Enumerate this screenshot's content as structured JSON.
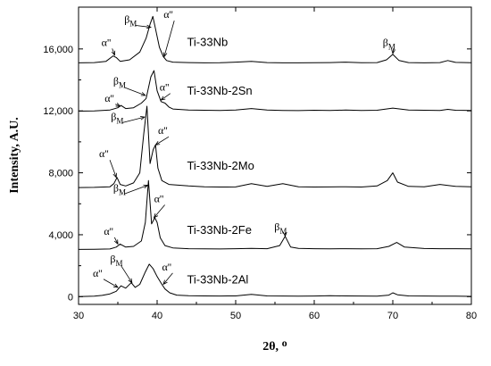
{
  "chart_data": {
    "type": "line",
    "xlabel": "2θ, ᴼ",
    "ylabel": "Intensity, A.U.",
    "xlim": [
      30,
      80
    ],
    "ylim": [
      -500,
      18700
    ],
    "x_ticks": [
      30,
      40,
      50,
      60,
      70,
      80
    ],
    "y_ticks": [
      0,
      4000,
      8000,
      12000,
      16000
    ],
    "y_tick_labels": [
      "0",
      "4,000",
      "8,000",
      "12,000",
      "16,000"
    ],
    "grid": false,
    "series": [
      {
        "name": "Ti-33Nb",
        "x": [
          30,
          32,
          33.5,
          34.4,
          34.8,
          35.3,
          36.5,
          37.8,
          38.6,
          39.1,
          39.45,
          39.8,
          40.3,
          40.8,
          41.2,
          42,
          44,
          46,
          48,
          50,
          52,
          54,
          56,
          58,
          60,
          62,
          64,
          66,
          68,
          69.2,
          70,
          70.8,
          72,
          74,
          76,
          77,
          78,
          80
        ],
        "y": [
          15100,
          15120,
          15200,
          15550,
          15450,
          15200,
          15300,
          15800,
          16700,
          17600,
          18100,
          17300,
          16100,
          15500,
          15250,
          15150,
          15120,
          15100,
          15110,
          15150,
          15200,
          15120,
          15100,
          15100,
          15110,
          15120,
          15150,
          15110,
          15120,
          15300,
          15650,
          15250,
          15120,
          15100,
          15120,
          15250,
          15130,
          15110
        ]
      },
      {
        "name": "Ti-33Nb-2Sn",
        "x": [
          30,
          32,
          34,
          35,
          35.4,
          36,
          37,
          38,
          38.6,
          39.2,
          39.6,
          40,
          40.5,
          41,
          41.5,
          42,
          44,
          46,
          48,
          50,
          52,
          54,
          56,
          58,
          60,
          62,
          64,
          66,
          68,
          70,
          72,
          74,
          76,
          77,
          78,
          80
        ],
        "y": [
          11980,
          12000,
          12060,
          12200,
          12350,
          12150,
          12200,
          12500,
          12800,
          14200,
          14600,
          13300,
          12600,
          12500,
          12250,
          12120,
          12060,
          12040,
          12030,
          12060,
          12150,
          12050,
          12030,
          12020,
          12040,
          12030,
          12050,
          12030,
          12040,
          12180,
          12050,
          12040,
          12030,
          12100,
          12040,
          12030
        ]
      },
      {
        "name": "Ti-33Nb-2Mo",
        "x": [
          30,
          32,
          34,
          34.5,
          34.9,
          35.3,
          36,
          37,
          37.8,
          38.3,
          38.7,
          39.1,
          39.5,
          39.8,
          40.1,
          40.6,
          41.5,
          44,
          46,
          48,
          50,
          52,
          54,
          56,
          58,
          60,
          62,
          64,
          66,
          68,
          69.3,
          70,
          70.6,
          72,
          74,
          76,
          78,
          80
        ],
        "y": [
          7050,
          7060,
          7100,
          7300,
          7700,
          7250,
          7150,
          7350,
          8000,
          10500,
          12300,
          8600,
          9500,
          9800,
          8300,
          7500,
          7250,
          7150,
          7100,
          7080,
          7090,
          7300,
          7120,
          7300,
          7100,
          7080,
          7090,
          7100,
          7080,
          7150,
          7500,
          8000,
          7400,
          7120,
          7100,
          7250,
          7120,
          7100
        ]
      },
      {
        "name": "Ti-33Nb-2Fe",
        "x": [
          30,
          32,
          34,
          34.8,
          35.3,
          36,
          37,
          38,
          38.5,
          38.9,
          39.3,
          39.7,
          40,
          40.4,
          41,
          42,
          44,
          46,
          48,
          50,
          52,
          54,
          55.6,
          56.3,
          57,
          58,
          60,
          62,
          64,
          66,
          68,
          69.5,
          70.5,
          71.5,
          74,
          76,
          78,
          80
        ],
        "y": [
          3050,
          3060,
          3080,
          3200,
          3400,
          3200,
          3250,
          3600,
          4800,
          7500,
          4700,
          5100,
          4800,
          3800,
          3300,
          3150,
          3100,
          3090,
          3080,
          3100,
          3120,
          3100,
          3300,
          3900,
          3200,
          3120,
          3100,
          3090,
          3100,
          3090,
          3100,
          3250,
          3500,
          3200,
          3110,
          3100,
          3100,
          3090
        ]
      },
      {
        "name": "Ti-33Nb-2Al",
        "x": [
          30,
          32,
          33,
          34,
          34.8,
          35.4,
          36,
          36.7,
          37.2,
          37.8,
          38.5,
          39,
          39.5,
          40,
          40.6,
          41,
          41.6,
          42.5,
          44,
          46,
          48,
          50,
          52,
          54,
          56,
          58,
          60,
          62,
          64,
          66,
          68,
          69.5,
          70,
          70.6,
          72,
          74,
          76,
          78,
          80
        ],
        "y": [
          0,
          30,
          80,
          180,
          350,
          700,
          550,
          900,
          600,
          800,
          1600,
          2100,
          1800,
          1300,
          800,
          500,
          250,
          100,
          60,
          50,
          40,
          50,
          150,
          50,
          40,
          30,
          40,
          60,
          50,
          40,
          30,
          100,
          250,
          120,
          50,
          40,
          30,
          30,
          20
        ]
      }
    ],
    "series_labels": [
      {
        "text": "Ti-33Nb",
        "x": 43.8,
        "y": 16200
      },
      {
        "text": "Ti-33Nb-2Sn",
        "x": 43.8,
        "y": 13050
      },
      {
        "text": "Ti-33Nb-2Mo",
        "x": 43.8,
        "y": 8200
      },
      {
        "text": "Ti-33Nb-2Fe",
        "x": 43.8,
        "y": 4050
      },
      {
        "text": "Ti-33Nb-2Al",
        "x": 43.8,
        "y": 850
      }
    ],
    "annotations": [
      {
        "symbol": "β",
        "sub": "M",
        "tx": 36.5,
        "ty": 17700,
        "ax": 39.2,
        "ay": 17400
      },
      {
        "symbol": "α''",
        "sub": "",
        "tx": 41.5,
        "ty": 18000,
        "ax": 40.9,
        "ay": 15500
      },
      {
        "symbol": "α''",
        "sub": "",
        "tx": 33.6,
        "ty": 16200,
        "ax": 34.6,
        "ay": 15600
      },
      {
        "symbol": "β",
        "sub": "M",
        "tx": 69.4,
        "ty": 16200,
        "ax": 70,
        "ay": 15700
      },
      {
        "symbol": "β",
        "sub": "M",
        "tx": 35.1,
        "ty": 13700,
        "ax": 38.5,
        "ay": 13000
      },
      {
        "symbol": "α''",
        "sub": "",
        "tx": 41,
        "ty": 13300,
        "ax": 40.5,
        "ay": 12700
      },
      {
        "symbol": "α''",
        "sub": "",
        "tx": 34,
        "ty": 12600,
        "ax": 35.3,
        "ay": 12300
      },
      {
        "symbol": "β",
        "sub": "M",
        "tx": 34.8,
        "ty": 11400,
        "ax": 38.4,
        "ay": 11600
      },
      {
        "symbol": "α''",
        "sub": "",
        "tx": 40.8,
        "ty": 10500,
        "ax": 39.8,
        "ay": 9800
      },
      {
        "symbol": "α''",
        "sub": "",
        "tx": 33.3,
        "ty": 9000,
        "ax": 34.8,
        "ay": 7700
      },
      {
        "symbol": "β",
        "sub": "M",
        "tx": 35.1,
        "ty": 6800,
        "ax": 38.8,
        "ay": 7200
      },
      {
        "symbol": "α''",
        "sub": "",
        "tx": 40.3,
        "ty": 6100,
        "ax": 39.6,
        "ay": 5100
      },
      {
        "symbol": "α''",
        "sub": "",
        "tx": 33.9,
        "ty": 4000,
        "ax": 35,
        "ay": 3400
      },
      {
        "symbol": "β",
        "sub": "M",
        "tx": 55.6,
        "ty": 4300,
        "ax": 56.3,
        "ay": 3900
      },
      {
        "symbol": "α''",
        "sub": "",
        "tx": 32.5,
        "ty": 1300,
        "ax": 35,
        "ay": 600
      },
      {
        "symbol": "β",
        "sub": "M",
        "tx": 34.7,
        "ty": 2200,
        "ax": 36.8,
        "ay": 900
      },
      {
        "symbol": "α''",
        "sub": "",
        "tx": 41.3,
        "ty": 1700,
        "ax": 40.8,
        "ay": 800
      }
    ]
  }
}
